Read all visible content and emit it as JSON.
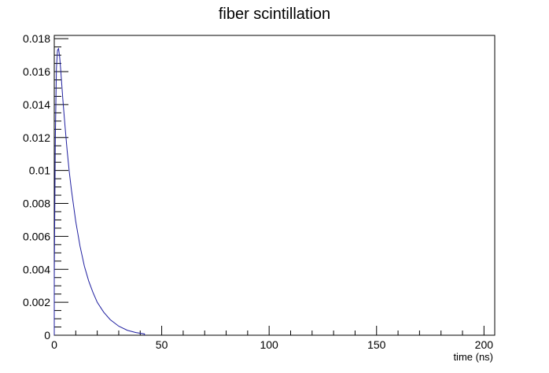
{
  "chart_data": {
    "type": "line",
    "title": "fiber scintillation",
    "xlabel": "time (ns)",
    "ylabel": "",
    "xlim": [
      0,
      205
    ],
    "ylim": [
      0,
      0.0182
    ],
    "x_major_ticks": [
      0,
      50,
      100,
      150,
      200
    ],
    "x_tick_labels": [
      "0",
      "50",
      "100",
      "150",
      "200"
    ],
    "y_major_ticks": [
      0,
      0.002,
      0.004,
      0.006,
      0.008,
      0.01,
      0.012,
      0.014,
      0.016,
      0.018
    ],
    "y_tick_labels": [
      "0",
      "0.002",
      "0.004",
      "0.006",
      "0.008",
      "0.01",
      "0.012",
      "0.014",
      "0.016",
      "0.018"
    ],
    "grid": false,
    "line_color": "#1f1fa0",
    "series": [
      {
        "x": [
          0,
          0.5,
          1,
          1.5,
          2,
          2.5,
          3,
          3.5,
          4,
          5,
          6,
          7,
          8,
          10,
          12,
          14,
          16,
          18,
          20,
          23,
          26,
          30,
          34,
          38,
          42
        ],
        "values": [
          0.0035,
          0.012,
          0.0162,
          0.0173,
          0.0174,
          0.0169,
          0.0161,
          0.0152,
          0.0143,
          0.0127,
          0.0112,
          0.0099,
          0.0088,
          0.0069,
          0.0054,
          0.0042,
          0.0033,
          0.0026,
          0.002,
          0.0014,
          0.00095,
          0.00055,
          0.0003,
          0.00016,
          8e-05
        ]
      }
    ]
  }
}
